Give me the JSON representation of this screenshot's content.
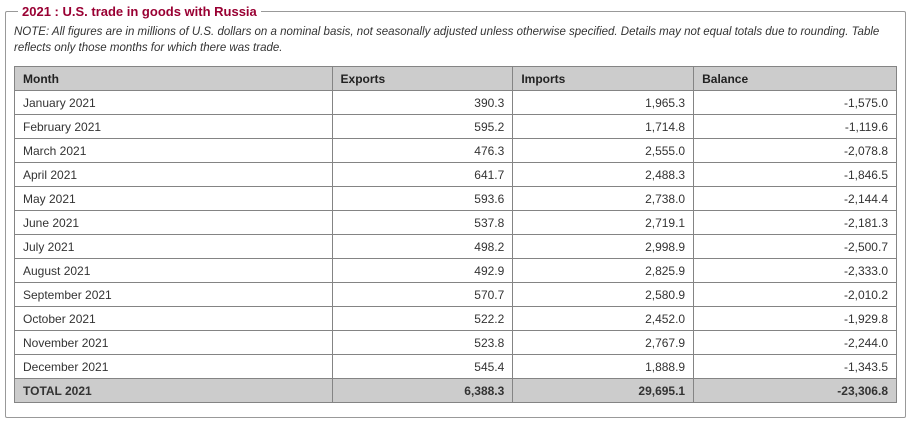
{
  "page": {
    "title": "2021 : U.S. trade in goods with Russia",
    "note": "NOTE: All figures are in millions of U.S. dollars on a nominal basis, not seasonally adjusted unless otherwise specified. Details may not equal totals due to rounding. Table reflects only those months for which there was trade."
  },
  "colors": {
    "accent": "#990033",
    "table_header_bg": "#cccccc",
    "table_border": "#848484",
    "fieldset_border": "#999999"
  },
  "chart_data": {
    "type": "table",
    "title": "2021 : U.S. trade in goods with Russia",
    "units": "millions of U.S. dollars",
    "columns": [
      "Month",
      "Exports",
      "Imports",
      "Balance"
    ],
    "rows": [
      [
        "January 2021",
        "390.3",
        "1,965.3",
        "-1,575.0"
      ],
      [
        "February 2021",
        "595.2",
        "1,714.8",
        "-1,119.6"
      ],
      [
        "March 2021",
        "476.3",
        "2,555.0",
        "-2,078.8"
      ],
      [
        "April 2021",
        "641.7",
        "2,488.3",
        "-1,846.5"
      ],
      [
        "May 2021",
        "593.6",
        "2,738.0",
        "-2,144.4"
      ],
      [
        "June 2021",
        "537.8",
        "2,719.1",
        "-2,181.3"
      ],
      [
        "July 2021",
        "498.2",
        "2,998.9",
        "-2,500.7"
      ],
      [
        "August 2021",
        "492.9",
        "2,825.9",
        "-2,333.0"
      ],
      [
        "September 2021",
        "570.7",
        "2,580.9",
        "-2,010.2"
      ],
      [
        "October 2021",
        "522.2",
        "2,452.0",
        "-1,929.8"
      ],
      [
        "November 2021",
        "523.8",
        "2,767.9",
        "-2,244.0"
      ],
      [
        "December 2021",
        "545.4",
        "1,888.9",
        "-1,343.5"
      ]
    ],
    "total_row": [
      "TOTAL 2021",
      "6,388.3",
      "29,695.1",
      "-23,306.8"
    ]
  }
}
